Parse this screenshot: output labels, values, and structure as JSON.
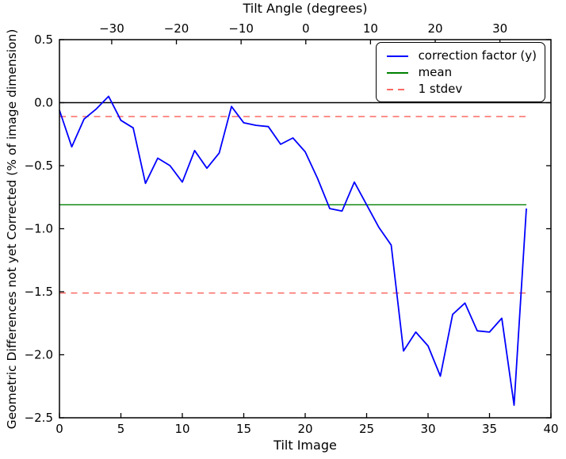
{
  "figure": {
    "background": "#ffffff",
    "frame_color": "#000000"
  },
  "chart_data": {
    "type": "line",
    "title": "",
    "xlabel": "Tilt Image",
    "ylabel": "Geometric Differences not yet Corrected (% of image dimension)",
    "xlim": [
      0,
      40
    ],
    "ylim": [
      -2.5,
      0.5
    ],
    "grid": false,
    "legend_position": "upper right",
    "x_ticks": [
      0,
      5,
      10,
      15,
      20,
      25,
      30,
      35,
      40
    ],
    "x_tick_labels": [
      "0",
      "5",
      "10",
      "15",
      "20",
      "25",
      "30",
      "35",
      "40"
    ],
    "y_ticks": [
      0.5,
      0.0,
      -0.5,
      -1.0,
      -1.5,
      -2.0,
      -2.5
    ],
    "y_tick_labels": [
      "0.5",
      "0.0",
      "−0.5",
      "−1.0",
      "−1.5",
      "−2.0",
      "−2.5"
    ],
    "top_axis": {
      "label": "Tilt Angle (degrees)",
      "ticks": [
        -30,
        -20,
        -10,
        0,
        10,
        20,
        30
      ],
      "tick_labels": [
        "−30",
        "−20",
        "−10",
        "0",
        "10",
        "20",
        "30"
      ],
      "deg_per_image": 1.899,
      "image_index_at_zero_deg": 20.05
    },
    "series": [
      {
        "name": "correction factor (y)",
        "color": "#0000ff",
        "style": "solid",
        "x": [
          0,
          1,
          2,
          3,
          4,
          5,
          6,
          7,
          8,
          9,
          10,
          11,
          12,
          13,
          14,
          15,
          16,
          17,
          18,
          19,
          20,
          21,
          22,
          23,
          24,
          25,
          26,
          27,
          28,
          29,
          30,
          31,
          32,
          33,
          34,
          35,
          36,
          37,
          38
        ],
        "values": [
          -0.06,
          -0.35,
          -0.13,
          -0.05,
          0.05,
          -0.14,
          -0.2,
          -0.64,
          -0.44,
          -0.5,
          -0.63,
          -0.38,
          -0.52,
          -0.4,
          -0.03,
          -0.16,
          -0.18,
          -0.19,
          -0.33,
          -0.28,
          -0.39,
          -0.6,
          -0.84,
          -0.86,
          -0.63,
          -0.81,
          -0.99,
          -1.13,
          -1.97,
          -1.82,
          -1.93,
          -2.17,
          -1.68,
          -1.59,
          -1.81,
          -1.82,
          -1.71,
          -2.4,
          -0.84
        ]
      },
      {
        "name": "mean",
        "color": "#008000",
        "style": "solid",
        "value": -0.81,
        "x_range": [
          0,
          38
        ]
      },
      {
        "name": "1 stdev",
        "color": "#fa6a64",
        "style": "dashed",
        "values": [
          -0.11,
          -1.51
        ],
        "x_range": [
          0,
          38
        ]
      }
    ],
    "zero_line": {
      "color": "#000000",
      "value": 0.0,
      "x_range": [
        0,
        40
      ]
    },
    "legend": {
      "items": [
        {
          "label": "correction factor (y)",
          "color": "#0000ff",
          "style": "solid"
        },
        {
          "label": "mean",
          "color": "#008000",
          "style": "solid"
        },
        {
          "label": "1 stdev",
          "color": "#fa6a64",
          "style": "dashed"
        }
      ]
    }
  }
}
